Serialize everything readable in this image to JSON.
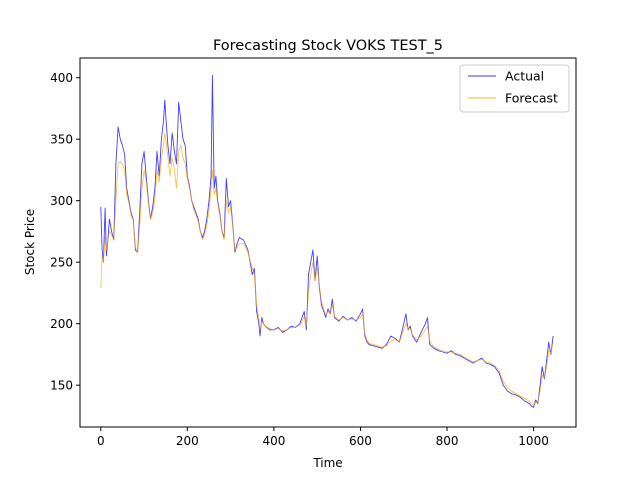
{
  "chart_data": {
    "type": "line",
    "title": "Forecasting Stock VOKS TEST_5",
    "xlabel": "Time",
    "ylabel": "Stock Price",
    "xlim": [
      -48,
      1098
    ],
    "ylim": [
      116,
      416
    ],
    "xticks": [
      0,
      200,
      400,
      600,
      800,
      1000
    ],
    "yticks": [
      150,
      200,
      250,
      300,
      350,
      400
    ],
    "grid": false,
    "legend_position": "top-right",
    "colors": {
      "Actual": "#0000ff",
      "Forecast": "#ffa500"
    },
    "series": [
      {
        "name": "Actual",
        "x": [
          0,
          3,
          6,
          10,
          13,
          17,
          20,
          25,
          30,
          35,
          40,
          45,
          50,
          55,
          60,
          65,
          70,
          75,
          80,
          85,
          90,
          95,
          100,
          105,
          110,
          115,
          120,
          125,
          130,
          135,
          140,
          145,
          148,
          150,
          155,
          160,
          165,
          170,
          175,
          180,
          185,
          190,
          195,
          200,
          205,
          210,
          215,
          220,
          225,
          230,
          235,
          240,
          245,
          250,
          255,
          258,
          262,
          266,
          270,
          275,
          280,
          285,
          290,
          295,
          300,
          305,
          310,
          315,
          320,
          330,
          340,
          350,
          355,
          360,
          365,
          368,
          372,
          376,
          380,
          390,
          400,
          410,
          420,
          430,
          440,
          450,
          460,
          470,
          475,
          480,
          485,
          490,
          495,
          500,
          505,
          510,
          515,
          520,
          525,
          530,
          535,
          540,
          550,
          560,
          570,
          580,
          590,
          600,
          605,
          610,
          615,
          620,
          630,
          640,
          650,
          660,
          670,
          680,
          690,
          700,
          705,
          710,
          715,
          720,
          730,
          740,
          750,
          755,
          760,
          770,
          780,
          790,
          800,
          810,
          820,
          830,
          840,
          850,
          860,
          870,
          880,
          890,
          900,
          910,
          920,
          930,
          940,
          950,
          960,
          970,
          980,
          990,
          995,
          1000,
          1005,
          1010,
          1015,
          1020,
          1025,
          1030,
          1035,
          1040,
          1045
        ],
        "y": [
          295,
          260,
          250,
          294,
          255,
          270,
          285,
          275,
          268,
          330,
          360,
          350,
          345,
          338,
          310,
          300,
          290,
          285,
          260,
          258,
          290,
          330,
          340,
          320,
          300,
          285,
          295,
          310,
          340,
          320,
          350,
          365,
          382,
          370,
          345,
          330,
          355,
          340,
          330,
          380,
          365,
          350,
          345,
          320,
          312,
          300,
          295,
          290,
          285,
          275,
          270,
          275,
          285,
          300,
          320,
          402,
          310,
          320,
          300,
          290,
          275,
          270,
          318,
          295,
          300,
          280,
          258,
          265,
          270,
          268,
          260,
          240,
          245,
          210,
          200,
          190,
          205,
          200,
          198,
          195,
          195,
          197,
          193,
          195,
          198,
          197,
          200,
          210,
          195,
          240,
          250,
          260,
          235,
          255,
          230,
          215,
          210,
          205,
          212,
          208,
          220,
          205,
          202,
          206,
          203,
          205,
          202,
          208,
          212,
          190,
          185,
          183,
          182,
          181,
          180,
          183,
          190,
          188,
          185,
          200,
          208,
          195,
          198,
          190,
          185,
          193,
          200,
          205,
          183,
          180,
          178,
          177,
          176,
          178,
          175,
          174,
          172,
          170,
          168,
          170,
          172,
          168,
          167,
          165,
          160,
          150,
          145,
          143,
          142,
          140,
          137,
          135,
          133,
          132,
          138,
          135,
          150,
          165,
          155,
          170,
          185,
          175,
          190
        ]
      },
      {
        "name": "Forecast",
        "x": [
          0,
          3,
          6,
          10,
          13,
          17,
          20,
          25,
          30,
          35,
          40,
          45,
          50,
          55,
          60,
          65,
          70,
          75,
          80,
          85,
          90,
          95,
          100,
          105,
          110,
          115,
          120,
          125,
          130,
          135,
          140,
          145,
          148,
          150,
          155,
          160,
          165,
          170,
          175,
          180,
          185,
          190,
          195,
          200,
          205,
          210,
          215,
          220,
          225,
          230,
          235,
          240,
          245,
          250,
          255,
          258,
          262,
          266,
          270,
          275,
          280,
          285,
          290,
          295,
          300,
          305,
          310,
          315,
          320,
          330,
          340,
          350,
          355,
          360,
          365,
          368,
          372,
          376,
          380,
          390,
          400,
          410,
          420,
          430,
          440,
          450,
          460,
          470,
          475,
          480,
          485,
          490,
          495,
          500,
          505,
          510,
          515,
          520,
          525,
          530,
          535,
          540,
          550,
          560,
          570,
          580,
          590,
          600,
          605,
          610,
          615,
          620,
          630,
          640,
          650,
          660,
          670,
          680,
          690,
          700,
          705,
          710,
          715,
          720,
          730,
          740,
          750,
          755,
          760,
          770,
          780,
          790,
          800,
          810,
          820,
          830,
          840,
          850,
          860,
          870,
          880,
          890,
          900,
          910,
          920,
          930,
          940,
          950,
          960,
          970,
          980,
          990,
          995,
          1000,
          1005,
          1010,
          1015,
          1020,
          1025,
          1030,
          1035,
          1040,
          1045
        ],
        "y": [
          229,
          255,
          250,
          270,
          260,
          268,
          275,
          272,
          268,
          300,
          330,
          332,
          330,
          325,
          305,
          298,
          288,
          284,
          262,
          258,
          280,
          310,
          325,
          315,
          298,
          285,
          290,
          302,
          325,
          315,
          335,
          345,
          355,
          350,
          335,
          320,
          335,
          325,
          310,
          340,
          345,
          335,
          330,
          318,
          310,
          300,
          292,
          288,
          283,
          275,
          268,
          272,
          280,
          292,
          310,
          325,
          305,
          310,
          298,
          288,
          275,
          268,
          300,
          290,
          295,
          278,
          260,
          262,
          265,
          265,
          258,
          245,
          240,
          215,
          205,
          195,
          202,
          200,
          198,
          196,
          195,
          196,
          194,
          195,
          197,
          197,
          199,
          205,
          198,
          225,
          240,
          250,
          235,
          245,
          232,
          218,
          212,
          207,
          210,
          208,
          215,
          206,
          203,
          205,
          203,
          204,
          203,
          205,
          208,
          192,
          187,
          184,
          183,
          182,
          181,
          182,
          186,
          187,
          185,
          195,
          200,
          196,
          196,
          191,
          187,
          190,
          195,
          198,
          186,
          181,
          179,
          178,
          177,
          177,
          176,
          175,
          173,
          171,
          169,
          170,
          171,
          169,
          168,
          166,
          162,
          153,
          148,
          145,
          143,
          141,
          139,
          137,
          135,
          134,
          136,
          136,
          145,
          158,
          156,
          165,
          178,
          176,
          185
        ]
      }
    ]
  }
}
